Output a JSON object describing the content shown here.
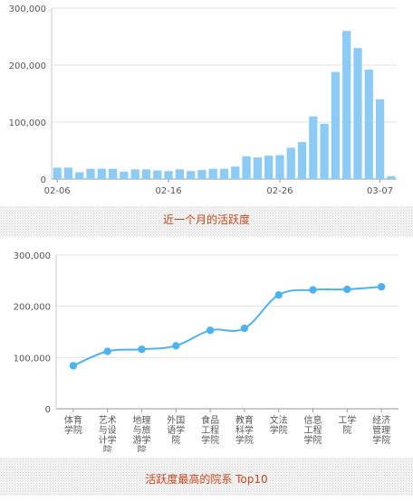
{
  "charts": {
    "monthly": {
      "caption": "近一个月的活跃度",
      "color": "#8ccbf6",
      "chart_data": {
        "type": "bar",
        "ylim": [
          0,
          300000
        ],
        "y_ticks": [
          "0",
          "100,000",
          "200,000",
          "300,000"
        ],
        "x_tick_labels": [
          "02-06",
          "02-16",
          "02-26",
          "03-07"
        ],
        "x_tick_indices": [
          0,
          10,
          20,
          29
        ],
        "values": [
          20000,
          20000,
          12000,
          18000,
          18000,
          18000,
          13000,
          17000,
          17000,
          15000,
          14000,
          17000,
          14000,
          16000,
          18000,
          18000,
          22000,
          40000,
          38000,
          41000,
          42000,
          55000,
          65000,
          110000,
          97000,
          188000,
          260000,
          230000,
          192000,
          140000,
          5000
        ]
      }
    },
    "top10": {
      "caption": "活跃度最高的院系 Top10",
      "color": "#4db3f0",
      "chart_data": {
        "type": "line",
        "ylim": [
          0,
          300000
        ],
        "y_ticks": [
          "0",
          "100,000",
          "200,000",
          "300,000"
        ],
        "categories": [
          [
            "体育",
            "学院"
          ],
          [
            "艺术",
            "与设",
            "计学",
            "院"
          ],
          [
            "地理",
            "与旅",
            "游学",
            "院"
          ],
          [
            "外国",
            "语学",
            "院"
          ],
          [
            "食品",
            "工程",
            "学院"
          ],
          [
            "教育",
            "科学",
            "学院"
          ],
          [
            "文法",
            "学院"
          ],
          [
            "信息",
            "工程",
            "学院"
          ],
          [
            "工学",
            "院"
          ],
          [
            "经济",
            "管理",
            "学院"
          ]
        ],
        "values": [
          84000,
          112000,
          116000,
          123000,
          153000,
          157000,
          222000,
          232000,
          233000,
          238000
        ]
      }
    }
  }
}
